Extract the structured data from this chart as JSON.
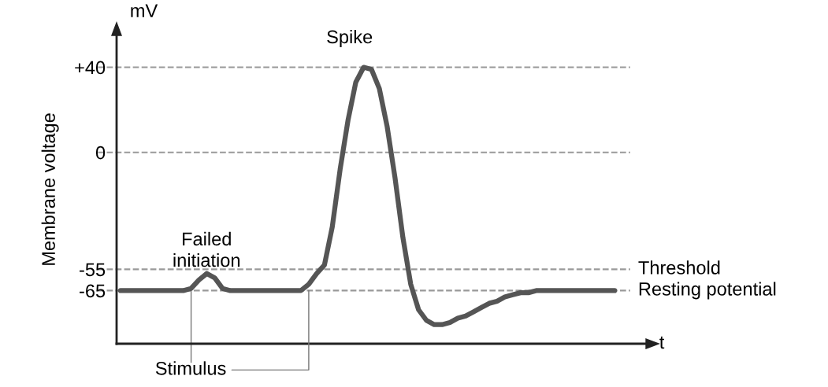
{
  "chart_data": {
    "type": "line",
    "ylabel": "Membrane voltage",
    "xlabel": "t",
    "categories": [
      null,
      null,
      null,
      null,
      null,
      null,
      null,
      null,
      null,
      null,
      null,
      null,
      null,
      null,
      null,
      null,
      null,
      null,
      null,
      null,
      null,
      null,
      null,
      null,
      null,
      null,
      null,
      null,
      null,
      null,
      null,
      null,
      null,
      null,
      null,
      null,
      null,
      null,
      null,
      null,
      null,
      null,
      null,
      null,
      null,
      null,
      null,
      null,
      null,
      null,
      null,
      null,
      null,
      null,
      null,
      null,
      null,
      null,
      null,
      null,
      null,
      null,
      null,
      null
    ],
    "series": [
      {
        "color": "#555555",
        "values": [
          -65,
          -65,
          -65,
          -65,
          -65,
          -65,
          -65,
          -65,
          -65,
          -64,
          -60,
          -57,
          -59,
          -64,
          -65,
          -65,
          -65,
          -65,
          -65,
          -65,
          -65,
          -65,
          -65,
          -65,
          -62,
          -57,
          -53,
          -35,
          -8,
          15,
          33,
          40,
          39,
          30,
          12,
          -12,
          -40,
          -62,
          -74,
          -79,
          -81,
          -81,
          -80,
          -78,
          -77,
          -75,
          -73,
          -71,
          -70,
          -68,
          -67,
          -66,
          -66,
          -65,
          -65,
          -65,
          -65,
          -65,
          -65,
          -65,
          -65,
          -65,
          -65,
          -65
        ]
      }
    ],
    "ylim": [
      -90,
      55
    ],
    "yticks": [
      {
        "value": 40,
        "label": "+40"
      },
      0,
      -55,
      -65
    ],
    "tick_labels": "y",
    "grid": false,
    "legend": false,
    "marker": "none",
    "line_style": "solid",
    "ref_lines": [
      {
        "axis": "y",
        "value": 40,
        "color": "#999999",
        "line_style": "dashed"
      },
      {
        "axis": "y",
        "value": 0,
        "color": "#999999",
        "line_style": "dashed"
      },
      {
        "axis": "y",
        "value": -55,
        "label": "Threshold",
        "color": "#999999",
        "line_style": "dashed"
      },
      {
        "axis": "y",
        "value": -65,
        "label": "Resting potential",
        "color": "#999999",
        "line_style": "dashed"
      }
    ],
    "annotations": [
      "mV",
      "Spike",
      "Failed\ninitiation",
      "Stimulus"
    ]
  }
}
